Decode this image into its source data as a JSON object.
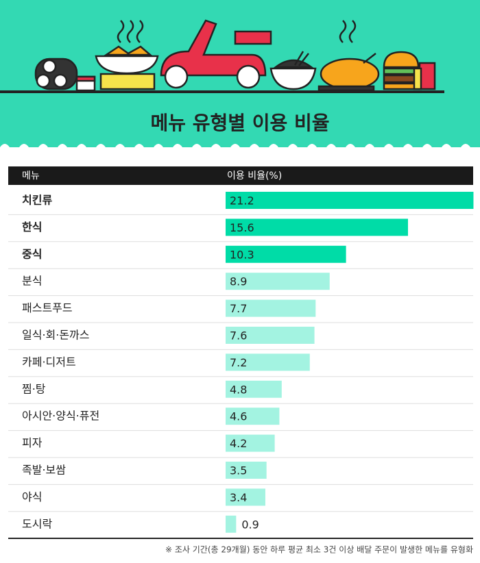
{
  "chart_data": {
    "type": "bar",
    "orientation": "horizontal",
    "title": "메뉴 유형별 이용 비율",
    "category_header": "메뉴",
    "value_header": "이용 비율(%)",
    "categories": [
      "치킨류",
      "한식",
      "중식",
      "분식",
      "패스트푸드",
      "일식·회·돈까스",
      "카페·디저트",
      "찜·탕",
      "아시안·양식·퓨전",
      "피자",
      "족발·보쌈",
      "야식",
      "도시락"
    ],
    "values": [
      21.2,
      15.6,
      10.3,
      8.9,
      7.7,
      7.6,
      7.2,
      4.8,
      4.6,
      4.2,
      3.5,
      3.4,
      0.9
    ],
    "colors": [
      "#00dca7",
      "#00dca7",
      "#00dca7",
      "#a3f3e1",
      "#a3f3e1",
      "#a3f3e1",
      "#a3f3e1",
      "#a3f3e1",
      "#a3f3e1",
      "#a3f3e1",
      "#a3f3e1",
      "#a3f3e1",
      "#a3f3e1"
    ],
    "bold": [
      true,
      true,
      true,
      false,
      false,
      false,
      false,
      false,
      false,
      false,
      false,
      false,
      false
    ],
    "note": "※ 조사 기간(총 29개월) 동안 하루 평균 최소 3건 이상 배달 주문이 발생한 메뉴를 유형화"
  }
}
